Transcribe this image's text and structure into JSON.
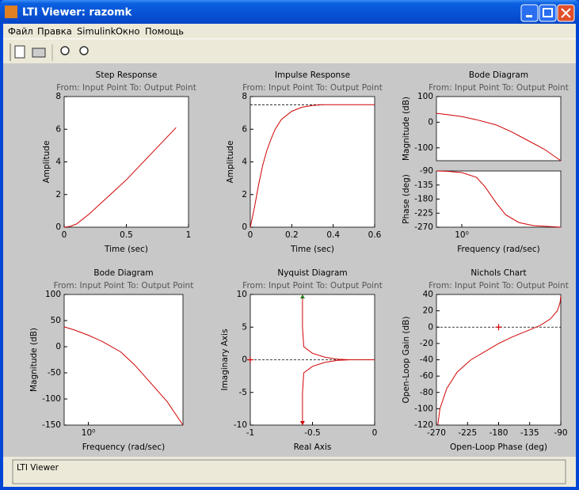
{
  "window": {
    "title": "LTI Viewer: razomk",
    "menu": [
      "Файл",
      "Правка",
      "Simulink",
      "Окно",
      "Помощь"
    ],
    "status": "LTI Viewer"
  },
  "chart_data": [
    {
      "type": "line",
      "title": "Step Response",
      "subtitle": "From: Input Point  To: Output Point",
      "xlabel": "Time (sec)",
      "axes": [
        {
          "ylabel": "Amplitude",
          "xlim": [
            0,
            1
          ],
          "ylim": [
            0,
            8
          ],
          "xticks": [
            0,
            0.5,
            1
          ],
          "yticks": [
            0,
            2,
            4,
            6,
            8
          ],
          "series": [
            {
              "color": "#d00000",
              "x": [
                0,
                0.05,
                0.1,
                0.2,
                0.3,
                0.4,
                0.5,
                0.6,
                0.7,
                0.8,
                0.9
              ],
              "values": [
                0,
                0.05,
                0.2,
                0.8,
                1.5,
                2.2,
                2.9,
                3.7,
                4.5,
                5.3,
                6.1
              ]
            }
          ]
        }
      ]
    },
    {
      "type": "line",
      "title": "Impulse Response",
      "subtitle": "From: Input Point  To: Output Point",
      "xlabel": "Time (sec)",
      "axes": [
        {
          "ylabel": "Amplitude",
          "xlim": [
            0,
            0.6
          ],
          "ylim": [
            0,
            8
          ],
          "xticks": [
            0,
            0.2,
            0.4,
            0.6
          ],
          "yticks": [
            0,
            2,
            4,
            6,
            8
          ],
          "reference_lines": [
            {
              "y": 7.5,
              "x": [
                0,
                0.35
              ]
            }
          ],
          "series": [
            {
              "color": "#d00000",
              "x": [
                0,
                0.02,
                0.04,
                0.06,
                0.08,
                0.1,
                0.12,
                0.15,
                0.2,
                0.25,
                0.3,
                0.35,
                0.6
              ],
              "values": [
                0,
                1.2,
                2.6,
                3.8,
                4.7,
                5.4,
                6.0,
                6.6,
                7.1,
                7.35,
                7.45,
                7.5,
                7.5
              ]
            }
          ]
        }
      ]
    },
    {
      "type": "bode",
      "title": "Bode Diagram",
      "subtitle": "From: Input Point  To: Output Point",
      "xlabel": "Frequency  (rad/sec)",
      "axes": [
        {
          "ylabel": "Magnitude (dB)",
          "xscale": "log",
          "xlim": [
            0.3,
            110
          ],
          "ylim": [
            -150,
            100
          ],
          "yticks": [
            100,
            0,
            -100
          ],
          "series": [
            {
              "color": "#d00000",
              "x": [
                0.3,
                0.5,
                1,
                2,
                5,
                10,
                20,
                50,
                110
              ],
              "values": [
                35,
                30,
                22,
                10,
                -10,
                -35,
                -65,
                -105,
                -150
              ]
            }
          ]
        },
        {
          "ylabel": "Phase (deg)",
          "xscale": "log",
          "xlim": [
            0.3,
            110
          ],
          "ylim": [
            -270,
            -90
          ],
          "xticks": [
            {
              "value": 1,
              "label": "10⁰"
            }
          ],
          "yticks": [
            -90,
            -135,
            -180,
            -225,
            -270
          ],
          "series": [
            {
              "color": "#d00000",
              "x": [
                0.3,
                0.5,
                1,
                2,
                3,
                5,
                8,
                15,
                30,
                110
              ],
              "values": [
                -90,
                -91,
                -95,
                -110,
                -140,
                -190,
                -230,
                -255,
                -265,
                -270
              ]
            }
          ]
        }
      ]
    },
    {
      "type": "bode",
      "title": "Bode Diagram",
      "subtitle": "From: Input Point  To: Output Point",
      "xlabel": "Frequency  (rad/sec)",
      "axes": [
        {
          "ylabel": "Magnitude (dB)",
          "xscale": "log",
          "xlim": [
            0.3,
            110
          ],
          "ylim": [
            -150,
            100
          ],
          "xticks": [
            {
              "value": 1,
              "label": "10⁰"
            }
          ],
          "yticks": [
            100,
            50,
            0,
            -50,
            -100,
            -150
          ],
          "series": [
            {
              "color": "#d00000",
              "x": [
                0.3,
                0.5,
                1,
                2,
                5,
                10,
                20,
                50,
                110
              ],
              "values": [
                38,
                32,
                22,
                10,
                -10,
                -35,
                -65,
                -105,
                -150
              ]
            }
          ]
        }
      ]
    },
    {
      "type": "nyquist",
      "title": "Nyquist Diagram",
      "subtitle": "From: Input Point  To: Output Point",
      "xlabel": "Real Axis",
      "axes": [
        {
          "ylabel": "Imaginary Axis",
          "xlim": [
            -1,
            0
          ],
          "ylim": [
            -10,
            10
          ],
          "xticks": [
            -1,
            -0.5,
            0
          ],
          "yticks": [
            -10,
            -5,
            0,
            5,
            10
          ],
          "reference_lines": [
            {
              "y": 0,
              "x": [
                -1,
                0
              ]
            }
          ],
          "critical_point": {
            "x": -1,
            "y": 0
          },
          "series": [
            {
              "color": "#d00000",
              "x": [
                -0.58,
                -0.58,
                -0.57,
                -0.5,
                -0.4,
                -0.3,
                -0.2,
                0
              ],
              "values": [
                10,
                5,
                2,
                1,
                0.4,
                0.1,
                0,
                0
              ]
            },
            {
              "color": "#d00000",
              "x": [
                -0.58,
                -0.58,
                -0.57,
                -0.5,
                -0.4,
                -0.3,
                -0.2,
                0
              ],
              "values": [
                -10,
                -5,
                -2,
                -1,
                -0.4,
                -0.1,
                0,
                0
              ]
            }
          ]
        }
      ]
    },
    {
      "type": "nichols",
      "title": "Nichols Chart",
      "subtitle": "From: Input Point  To: Output Point",
      "xlabel": "Open-Loop Phase (deg)",
      "axes": [
        {
          "ylabel": "Open-Loop Gain (dB)",
          "xlim": [
            -270,
            -90
          ],
          "ylim": [
            -120,
            40
          ],
          "xticks": [
            -270,
            -225,
            -180,
            -135,
            -90
          ],
          "yticks": [
            40,
            20,
            0,
            -20,
            -40,
            -60,
            -80,
            -100,
            -120
          ],
          "reference_lines": [
            {
              "y": 0,
              "x": [
                -270,
                -90
              ]
            }
          ],
          "critical_point": {
            "x": -180,
            "y": 0
          },
          "series": [
            {
              "color": "#d00000",
              "x": [
                -268,
                -265,
                -255,
                -240,
                -220,
                -200,
                -180,
                -160,
                -140,
                -120,
                -105,
                -95,
                -91,
                -90
              ],
              "values": [
                -120,
                -100,
                -75,
                -55,
                -40,
                -30,
                -20,
                -12,
                -5,
                2,
                10,
                20,
                30,
                38
              ]
            }
          ]
        }
      ]
    }
  ]
}
